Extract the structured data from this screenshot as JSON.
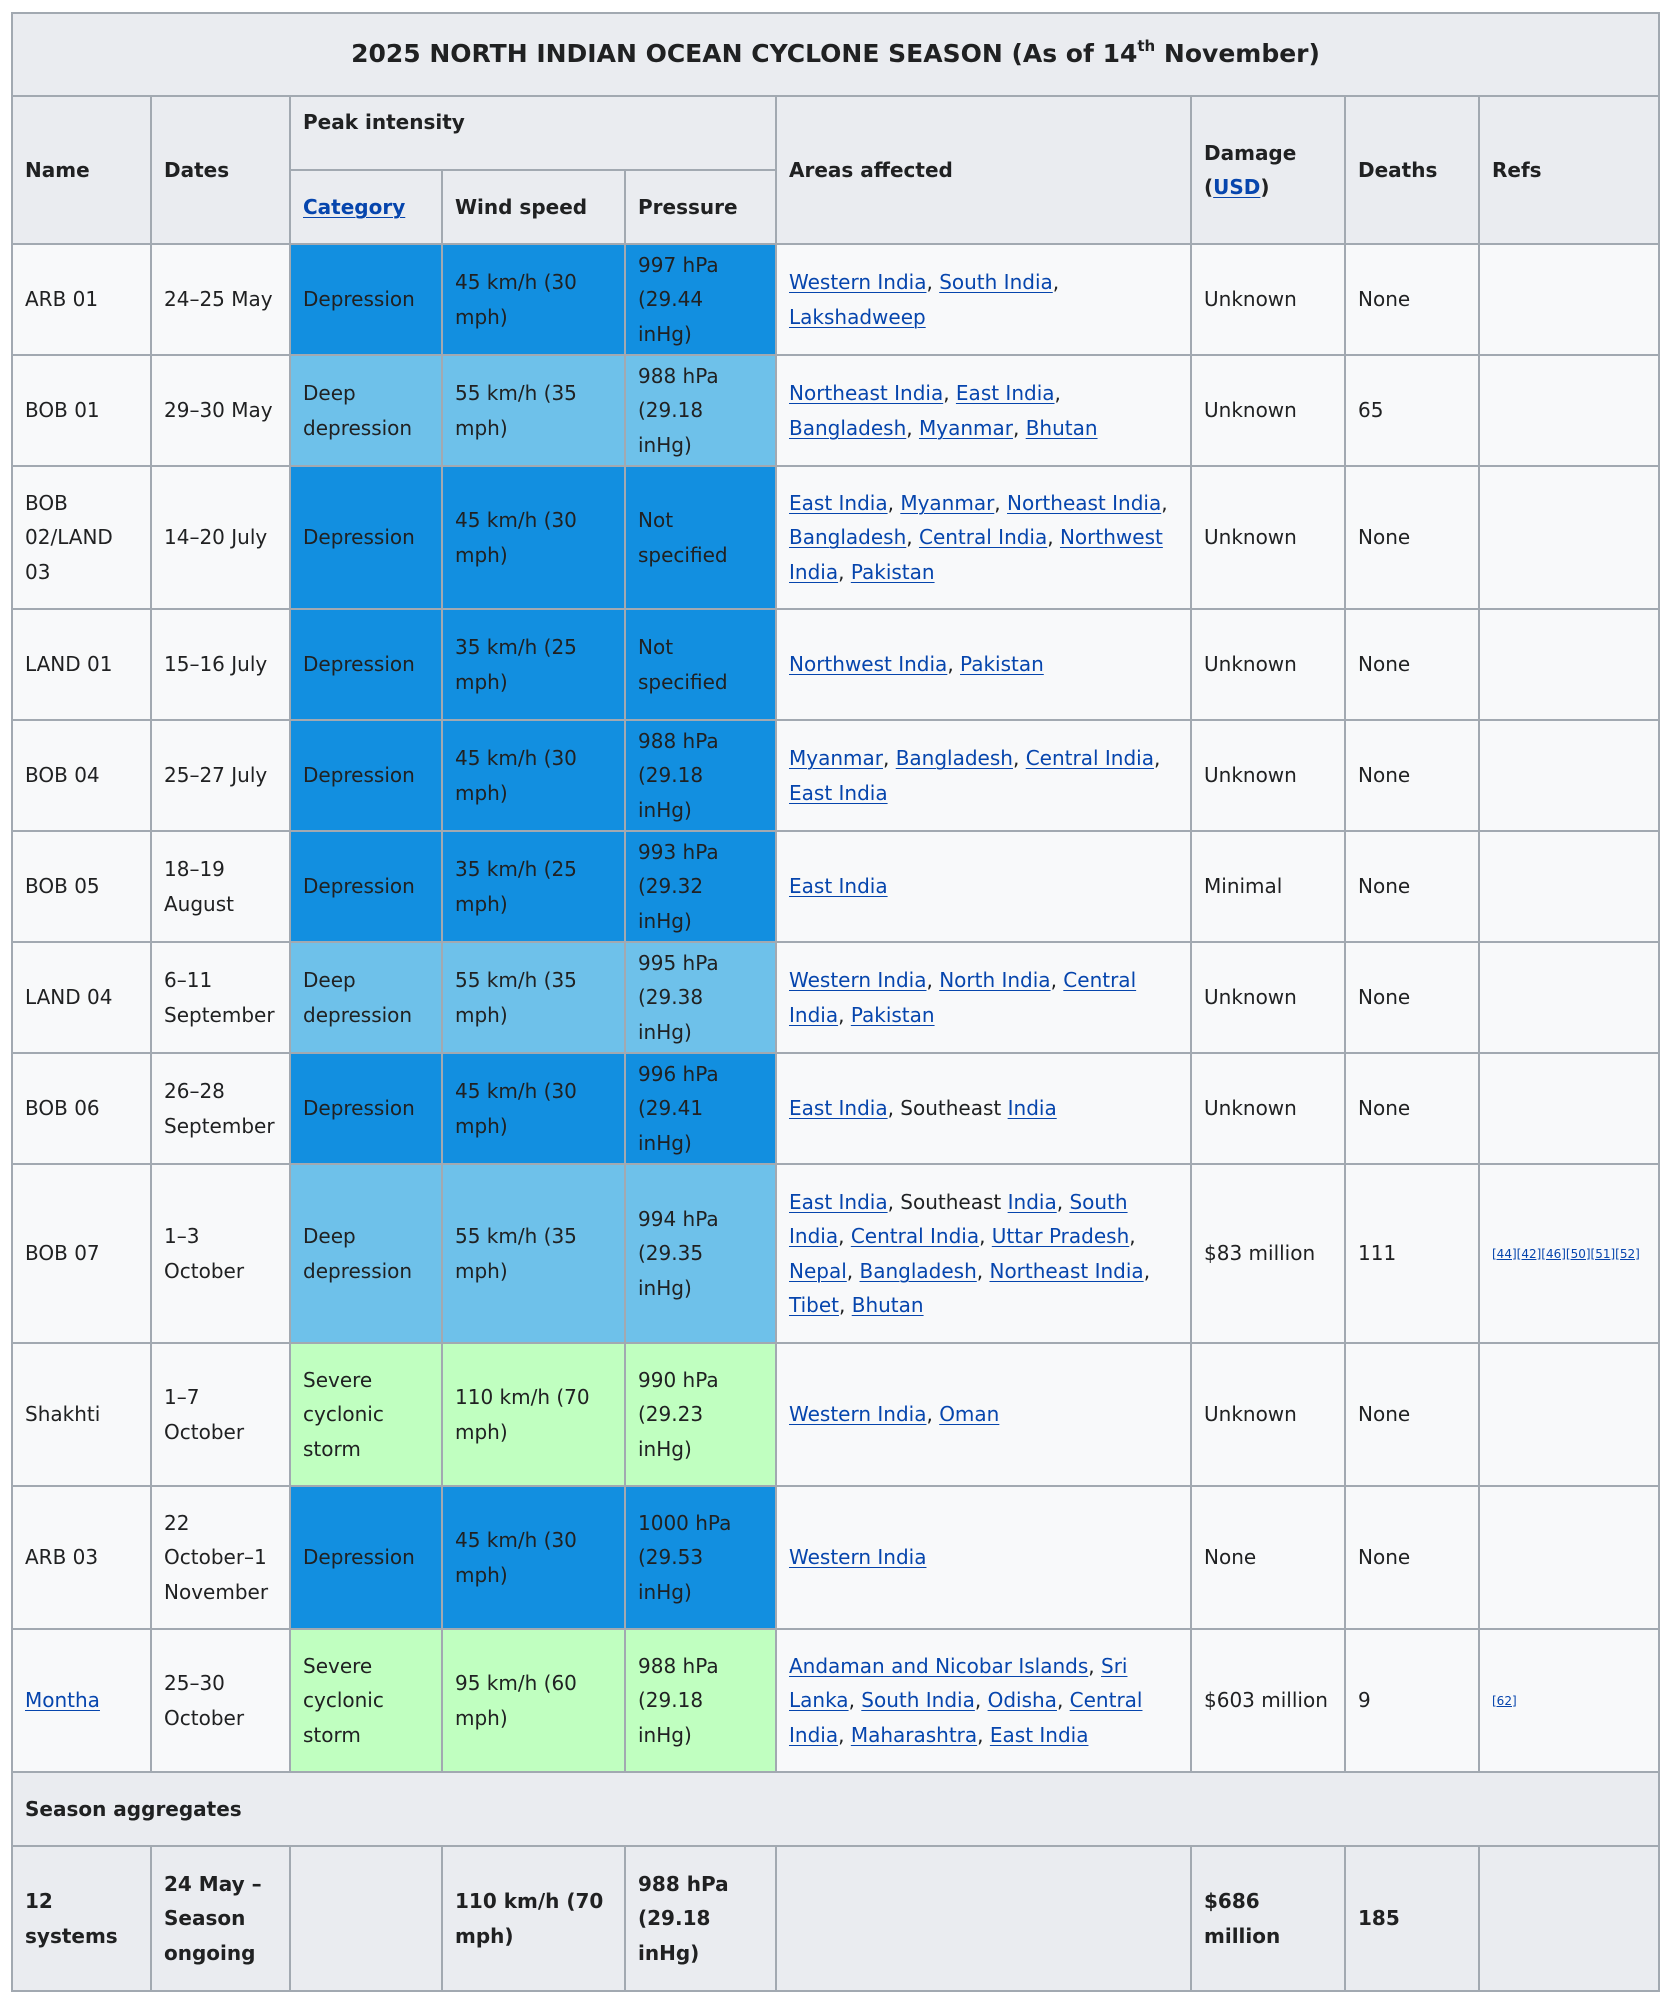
{
  "title": {
    "main": "2025 NORTH INDIAN OCEAN CYCLONE SEASON (As of 14",
    "sup": "th",
    "end": " November)"
  },
  "headers": {
    "name": "Name",
    "dates": "Dates",
    "peak": "Peak intensity",
    "category": "Category",
    "wind": "Wind speed",
    "pressure": "Pressure",
    "areas": "Areas affected",
    "damage": "Damage",
    "damage_open": "(",
    "damage_usd": "USD",
    "damage_close": ")",
    "deaths": "Deaths",
    "refs": "Refs"
  },
  "colors": {
    "depression": "#128fe0",
    "deep_depression": "#6ec1ea",
    "severe_cyclonic_storm": "#c0ffc0",
    "link": "#0645ad",
    "header_bg": "#eaecf0",
    "row_bg": "#f8f9fa",
    "border": "#a2a9b1"
  },
  "rows": [
    {
      "name": "ARB 01",
      "dates": "24–25 May",
      "category": "Depression",
      "wind": "45 km/h (30 mph)",
      "pressure": "997 hPa (29.44 inHg)",
      "areas": [
        {
          "t": "Western India",
          "link": true
        },
        {
          "t": ", ",
          "link": false
        },
        {
          "t": "South India",
          "link": true
        },
        {
          "t": ", ",
          "link": false
        },
        {
          "t": "Lakshadweep",
          "link": true
        }
      ],
      "damage": "Unknown",
      "deaths": "None",
      "refs": ""
    },
    {
      "name": "BOB 01",
      "dates": "29–30 May",
      "category": "Deep depression",
      "wind": "55 km/h (35 mph)",
      "pressure": "988 hPa (29.18 inHg)",
      "areas": [
        {
          "t": "Northeast India",
          "link": true
        },
        {
          "t": ", ",
          "link": false
        },
        {
          "t": "East India",
          "link": true
        },
        {
          "t": ", ",
          "link": false
        },
        {
          "t": "Bangladesh",
          "link": true
        },
        {
          "t": ", ",
          "link": false
        },
        {
          "t": "Myanmar",
          "link": true
        },
        {
          "t": ", ",
          "link": false
        },
        {
          "t": "Bhutan",
          "link": true
        }
      ],
      "damage": "Unknown",
      "deaths": "65",
      "refs": ""
    },
    {
      "name": "BOB 02/LAND 03",
      "dates": "14–20 July",
      "category": "Depression",
      "wind": "45 km/h (30 mph)",
      "pressure": "Not specified",
      "areas": [
        {
          "t": "East India",
          "link": true
        },
        {
          "t": ", ",
          "link": false
        },
        {
          "t": "Myanmar",
          "link": true
        },
        {
          "t": ", ",
          "link": false
        },
        {
          "t": "Northeast India",
          "link": true
        },
        {
          "t": ", ",
          "link": false
        },
        {
          "t": "Bangladesh",
          "link": true
        },
        {
          "t": ", ",
          "link": false
        },
        {
          "t": "Central India",
          "link": true
        },
        {
          "t": ", ",
          "link": false
        },
        {
          "t": "Northwest India",
          "link": true
        },
        {
          "t": ", ",
          "link": false
        },
        {
          "t": "Pakistan",
          "link": true
        }
      ],
      "damage": "Unknown",
      "deaths": "None",
      "refs": ""
    },
    {
      "name": "LAND 01",
      "dates": "15–16 July",
      "category": "Depression",
      "wind": "35 km/h (25 mph)",
      "pressure": "Not specified",
      "areas": [
        {
          "t": "Northwest India",
          "link": true
        },
        {
          "t": ", ",
          "link": false
        },
        {
          "t": "Pakistan",
          "link": true
        }
      ],
      "damage": "Unknown",
      "deaths": "None",
      "refs": ""
    },
    {
      "name": "BOB 04",
      "dates": "25–27 July",
      "category": "Depression",
      "wind": "45 km/h (30 mph)",
      "pressure": "988 hPa (29.18 inHg)",
      "areas": [
        {
          "t": "Myanmar",
          "link": true
        },
        {
          "t": ", ",
          "link": false
        },
        {
          "t": "Bangladesh",
          "link": true
        },
        {
          "t": ", ",
          "link": false
        },
        {
          "t": "Central India",
          "link": true
        },
        {
          "t": ", ",
          "link": false
        },
        {
          "t": "East India",
          "link": true
        }
      ],
      "damage": "Unknown",
      "deaths": "None",
      "refs": ""
    },
    {
      "name": "BOB 05",
      "dates": "18–19 August",
      "category": "Depression",
      "wind": "35 km/h (25 mph)",
      "pressure": "993 hPa (29.32 inHg)",
      "areas": [
        {
          "t": "East India",
          "link": true
        }
      ],
      "damage": "Minimal",
      "deaths": "None",
      "refs": ""
    },
    {
      "name": "LAND 04",
      "dates": "6–11 September",
      "category": "Deep depression",
      "wind": "55 km/h (35 mph)",
      "pressure": "995 hPa (29.38 inHg)",
      "areas": [
        {
          "t": "Western India",
          "link": true
        },
        {
          "t": ", ",
          "link": false
        },
        {
          "t": "North India",
          "link": true
        },
        {
          "t": ", ",
          "link": false
        },
        {
          "t": "Central India",
          "link": true
        },
        {
          "t": ", ",
          "link": false
        },
        {
          "t": "Pakistan",
          "link": true
        }
      ],
      "damage": "Unknown",
      "deaths": "None",
      "refs": ""
    },
    {
      "name": "BOB 06",
      "dates": "26–28 September",
      "category": "Depression",
      "wind": "45 km/h (30 mph)",
      "pressure": "996 hPa (29.41 inHg)",
      "areas": [
        {
          "t": "East India",
          "link": true
        },
        {
          "t": ", Southeast ",
          "link": false
        },
        {
          "t": "India",
          "link": true
        }
      ],
      "damage": "Unknown",
      "deaths": "None",
      "refs": ""
    },
    {
      "name": "BOB 07",
      "dates": "1–3 October",
      "category": "Deep depression",
      "wind": "55 km/h (35 mph)",
      "pressure": "994 hPa (29.35 inHg)",
      "areas": [
        {
          "t": "East India",
          "link": true
        },
        {
          "t": ", Southeast ",
          "link": false
        },
        {
          "t": "India",
          "link": true
        },
        {
          "t": ", ",
          "link": false
        },
        {
          "t": "South India",
          "link": true
        },
        {
          "t": ", ",
          "link": false
        },
        {
          "t": "Central India",
          "link": true
        },
        {
          "t": ", ",
          "link": false
        },
        {
          "t": "Uttar Pradesh",
          "link": true
        },
        {
          "t": ", ",
          "link": false
        },
        {
          "t": "Nepal",
          "link": true
        },
        {
          "t": ", ",
          "link": false
        },
        {
          "t": "Bangladesh",
          "link": true
        },
        {
          "t": ", ",
          "link": false
        },
        {
          "t": "Northeast India",
          "link": true
        },
        {
          "t": ", ",
          "link": false
        },
        {
          "t": "Tibet",
          "link": true
        },
        {
          "t": ", ",
          "link": false
        },
        {
          "t": "Bhutan",
          "link": true
        }
      ],
      "damage": "$83 million",
      "deaths": "111",
      "refs": "[44][42][46][50][51][52]"
    },
    {
      "name": "Shakhti",
      "dates": "1–7 October",
      "category": "Severe cyclonic storm",
      "wind": "110 km/h (70 mph)",
      "pressure": "990 hPa (29.23 inHg)",
      "areas": [
        {
          "t": "Western India",
          "link": true
        },
        {
          "t": ", ",
          "link": false
        },
        {
          "t": "Oman",
          "link": true
        }
      ],
      "damage": "Unknown",
      "deaths": "None",
      "refs": ""
    },
    {
      "name": "ARB 03",
      "dates": "22 October–1 November",
      "category": "Depression",
      "wind": "45 km/h (30 mph)",
      "pressure": "1000 hPa (29.53 inHg)",
      "areas": [
        {
          "t": "Western India",
          "link": true
        }
      ],
      "damage": "None",
      "deaths": "None",
      "refs": ""
    },
    {
      "name": "Montha",
      "name_link": true,
      "dates": "25–30 October",
      "category": "Severe cyclonic storm",
      "wind": "95 km/h (60 mph)",
      "pressure": "988 hPa (29.18 inHg)",
      "areas": [
        {
          "t": "Andaman and Nicobar Islands",
          "link": true
        },
        {
          "t": ", ",
          "link": false
        },
        {
          "t": "Sri Lanka",
          "link": true
        },
        {
          "t": ", ",
          "link": false
        },
        {
          "t": "South India",
          "link": true
        },
        {
          "t": ", ",
          "link": false
        },
        {
          "t": "Odisha",
          "link": true
        },
        {
          "t": ", ",
          "link": false
        },
        {
          "t": "Central India",
          "link": true
        },
        {
          "t": ", ",
          "link": false
        },
        {
          "t": "Maharashtra",
          "link": true
        },
        {
          "t": ", ",
          "link": false
        },
        {
          "t": "East India",
          "link": true
        }
      ],
      "damage": "$603 million",
      "deaths": "9",
      "refs": "[62]"
    }
  ],
  "aggregates": {
    "label": "Season aggregates",
    "systems": "12 systems",
    "dates": "24 May – Season ongoing",
    "wind": "110 km/h (70 mph)",
    "pressure": "988 hPa (29.18 inHg)",
    "damage": "$686 million",
    "deaths": "185"
  }
}
